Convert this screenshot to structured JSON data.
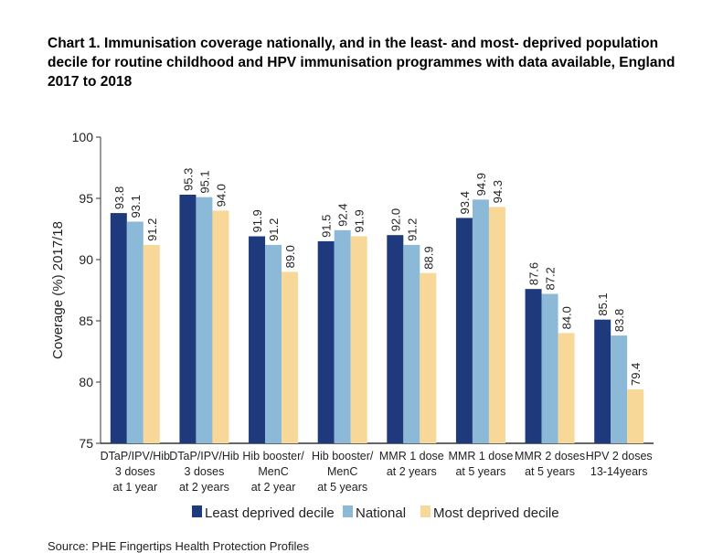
{
  "title": "Chart 1. Immunisation coverage nationally, and in the least- and most- deprived population decile for routine childhood and HPV immunisation programmes with data available, England 2017 to 2018",
  "source": "Source: PHE Fingertips Health Protection Profiles",
  "chart_data": {
    "type": "bar",
    "ylabel": "Coverage (%) 2017/18",
    "ylim": [
      75,
      100
    ],
    "yticks": [
      75,
      80,
      85,
      90,
      95,
      100
    ],
    "grid": false,
    "legend_position": "bottom",
    "categories": [
      [
        "DTaP/IPV/Hib",
        "3 doses",
        "at 1 year"
      ],
      [
        "DTaP/IPV/Hib",
        "3 doses",
        "at 2 years"
      ],
      [
        "Hib booster/",
        "MenC",
        "at 2 year"
      ],
      [
        "Hib booster/",
        "MenC",
        "at 5 years"
      ],
      [
        "MMR 1 dose",
        "at 2 years"
      ],
      [
        "MMR 1 dose",
        "at 5 years"
      ],
      [
        "MMR 2 doses",
        "at 5 years"
      ],
      [
        "HPV 2 doses",
        "13-14years"
      ]
    ],
    "series": [
      {
        "name": "Least deprived decile",
        "color": "#1f3a7c",
        "values": [
          93.8,
          95.3,
          91.9,
          91.5,
          92.0,
          93.4,
          87.6,
          85.1
        ]
      },
      {
        "name": "National",
        "color": "#8db9d8",
        "values": [
          93.1,
          95.1,
          91.2,
          92.4,
          91.2,
          94.9,
          87.2,
          83.8
        ]
      },
      {
        "name": "Most deprived decile",
        "color": "#f8d898",
        "values": [
          91.2,
          94.0,
          89.0,
          91.9,
          88.9,
          94.3,
          84.0,
          79.4
        ]
      }
    ]
  }
}
